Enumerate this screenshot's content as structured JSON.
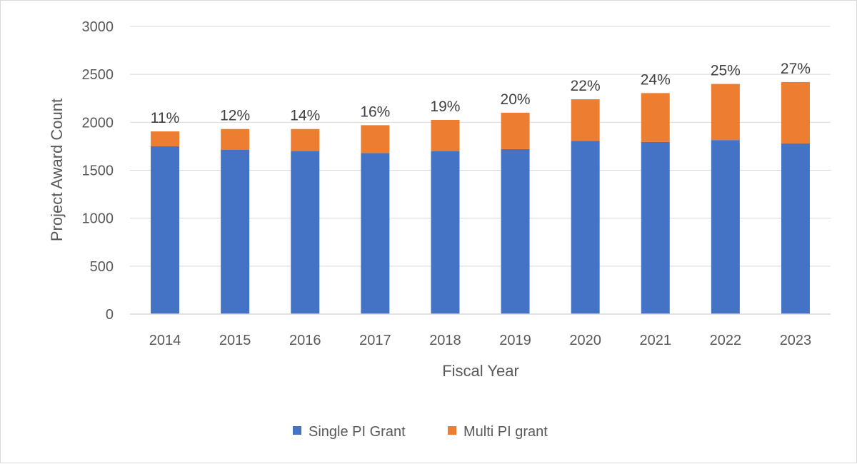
{
  "chart_data": {
    "type": "bar",
    "stacked": true,
    "categories": [
      "2014",
      "2015",
      "2016",
      "2017",
      "2018",
      "2019",
      "2020",
      "2021",
      "2022",
      "2023"
    ],
    "series": [
      {
        "name": "Single PI Grant",
        "color": "#4472c4",
        "values": [
          1750,
          1715,
          1700,
          1680,
          1700,
          1720,
          1805,
          1795,
          1815,
          1780
        ]
      },
      {
        "name": "Multi PI grant",
        "color": "#ed7d31",
        "values": [
          155,
          215,
          230,
          290,
          325,
          380,
          435,
          510,
          585,
          640
        ]
      }
    ],
    "data_labels": [
      "11%",
      "12%",
      "14%",
      "16%",
      "19%",
      "20%",
      "22%",
      "24%",
      "25%",
      "27%"
    ],
    "xlabel": "Fiscal Year",
    "ylabel": "Project Award Count",
    "ylim": [
      0,
      3000
    ],
    "yticks": [
      "0",
      "500",
      "1000",
      "1500",
      "2000",
      "2500",
      "3000"
    ],
    "grid": true,
    "legend_position": "bottom"
  }
}
